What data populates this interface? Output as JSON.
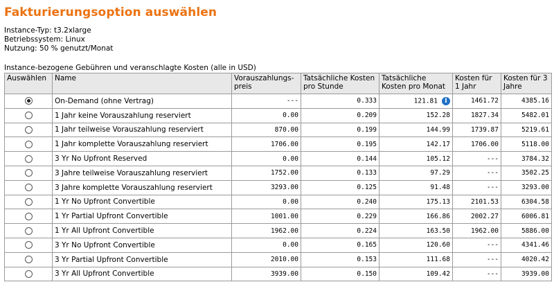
{
  "title": "Fakturierungsoption auswählen",
  "meta": {
    "instance_type": "Instance-Typ: t3.2xlarge",
    "os": "Betriebssystem: Linux",
    "usage": "Nutzung: 50 % genutzt/Monat"
  },
  "caption": "Instance-bezogene Gebühren und veranschlagte Kosten (alle in USD)",
  "headers": {
    "select": "Auswählen",
    "name": "Name",
    "upfront": "Vorauszahlungs-preis",
    "hourly": "Tatsächliche Kosten pro Stunde",
    "monthly": "Tatsächliche Kosten pro Monat",
    "year1": "Kosten für 1 Jahr",
    "year3": "Kosten für 3 Jahre"
  },
  "accent_color": "#ec7211",
  "info_icon": "info-icon",
  "rows": [
    {
      "selected": true,
      "name": "On-Demand (ohne Vertrag)",
      "upfront": "---",
      "hourly": "0.333",
      "monthly": "121.81",
      "year1": "1461.72",
      "year3": "4385.16",
      "info": true
    },
    {
      "selected": false,
      "name": "1 Jahr keine Vorauszahlung reserviert",
      "upfront": "0.00",
      "hourly": "0.209",
      "monthly": "152.28",
      "year1": "1827.34",
      "year3": "5482.01"
    },
    {
      "selected": false,
      "name": "1 Jahr teilweise Vorauszahlung reserviert",
      "upfront": "870.00",
      "hourly": "0.199",
      "monthly": "144.99",
      "year1": "1739.87",
      "year3": "5219.61"
    },
    {
      "selected": false,
      "name": "1 Jahr komplette Vorauszahlung reserviert",
      "upfront": "1706.00",
      "hourly": "0.195",
      "monthly": "142.17",
      "year1": "1706.00",
      "year3": "5118.00"
    },
    {
      "selected": false,
      "name": "3 Yr No Upfront Reserved",
      "upfront": "0.00",
      "hourly": "0.144",
      "monthly": "105.12",
      "year1": "---",
      "year3": "3784.32"
    },
    {
      "selected": false,
      "name": "3 Jahre teilweise Vorauszahlung reserviert",
      "upfront": "1752.00",
      "hourly": "0.133",
      "monthly": "97.29",
      "year1": "---",
      "year3": "3502.25"
    },
    {
      "selected": false,
      "name": "3 Jahre komplette Vorauszahlung reserviert",
      "upfront": "3293.00",
      "hourly": "0.125",
      "monthly": "91.48",
      "year1": "---",
      "year3": "3293.00"
    },
    {
      "selected": false,
      "name": "1 Yr No Upfront Convertible",
      "upfront": "0.00",
      "hourly": "0.240",
      "monthly": "175.13",
      "year1": "2101.53",
      "year3": "6304.58"
    },
    {
      "selected": false,
      "name": "1 Yr Partial Upfront Convertible",
      "upfront": "1001.00",
      "hourly": "0.229",
      "monthly": "166.86",
      "year1": "2002.27",
      "year3": "6006.81"
    },
    {
      "selected": false,
      "name": "1 Yr All Upfront Convertible",
      "upfront": "1962.00",
      "hourly": "0.224",
      "monthly": "163.50",
      "year1": "1962.00",
      "year3": "5886.00"
    },
    {
      "selected": false,
      "name": "3 Yr No Upfront Convertible",
      "upfront": "0.00",
      "hourly": "0.165",
      "monthly": "120.60",
      "year1": "---",
      "year3": "4341.46"
    },
    {
      "selected": false,
      "name": "3 Yr Partial Upfront Convertible",
      "upfront": "2010.00",
      "hourly": "0.153",
      "monthly": "111.68",
      "year1": "---",
      "year3": "4020.42"
    },
    {
      "selected": false,
      "name": "3 Yr All Upfront Convertible",
      "upfront": "3939.00",
      "hourly": "0.150",
      "monthly": "109.42",
      "year1": "---",
      "year3": "3939.00"
    }
  ]
}
